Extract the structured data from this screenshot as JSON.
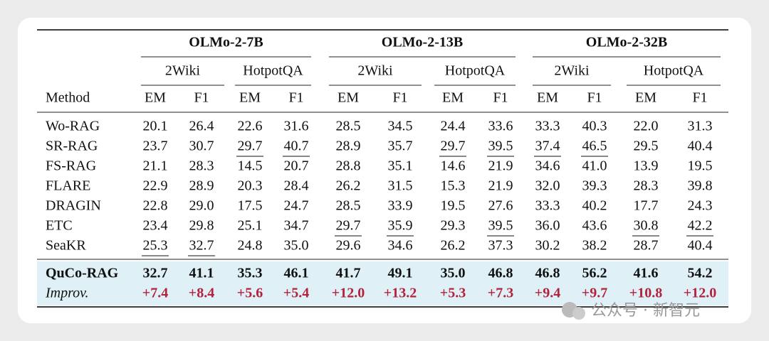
{
  "table": {
    "groups": [
      {
        "label": "OLMo-2-7B",
        "datasets": [
          "2Wiki",
          "HotpotQA"
        ]
      },
      {
        "label": "OLMo-2-13B",
        "datasets": [
          "2Wiki",
          "HotpotQA"
        ]
      },
      {
        "label": "OLMo-2-32B",
        "datasets": [
          "2Wiki",
          "HotpotQA"
        ]
      }
    ],
    "method_header": "Method",
    "metrics": [
      "EM",
      "F1"
    ],
    "rows": [
      {
        "method": "Wo-RAG",
        "cells": [
          "20.1",
          "26.4",
          "22.6",
          "31.6",
          "28.5",
          "34.5",
          "24.4",
          "33.6",
          "33.3",
          "40.3",
          "22.0",
          "31.3"
        ]
      },
      {
        "method": "SR-RAG",
        "cells": [
          "23.7",
          "30.7",
          "29.7",
          "40.7",
          "28.9",
          "35.7",
          "29.7",
          "39.5",
          "37.4",
          "46.5",
          "29.5",
          "40.4"
        ],
        "underlined": [
          2,
          3,
          6,
          7,
          8,
          9
        ]
      },
      {
        "method": "FS-RAG",
        "cells": [
          "21.1",
          "28.3",
          "14.5",
          "20.7",
          "28.8",
          "35.1",
          "14.6",
          "21.9",
          "34.6",
          "41.0",
          "13.9",
          "19.5"
        ]
      },
      {
        "method": "FLARE",
        "cells": [
          "22.9",
          "28.9",
          "20.3",
          "28.4",
          "26.2",
          "31.5",
          "15.3",
          "21.9",
          "32.0",
          "39.3",
          "28.3",
          "39.8"
        ]
      },
      {
        "method": "DRAGIN",
        "cells": [
          "22.8",
          "29.0",
          "17.5",
          "24.7",
          "28.5",
          "33.9",
          "19.5",
          "27.6",
          "33.3",
          "40.2",
          "17.7",
          "24.3"
        ]
      },
      {
        "method": "ETC",
        "cells": [
          "23.4",
          "29.8",
          "25.1",
          "34.7",
          "29.7",
          "35.9",
          "29.3",
          "39.5",
          "36.0",
          "43.6",
          "30.8",
          "42.2"
        ],
        "underlined": [
          4,
          5,
          7,
          10,
          11
        ]
      },
      {
        "method": "SeaKR",
        "cells": [
          "25.3",
          "32.7",
          "24.8",
          "35.0",
          "29.6",
          "34.6",
          "26.2",
          "37.3",
          "30.2",
          "38.2",
          "28.7",
          "40.4"
        ],
        "underlined": [
          0,
          1
        ]
      }
    ],
    "highlight_rows": [
      {
        "method": "QuCo-RAG",
        "cells": [
          "32.7",
          "41.1",
          "35.3",
          "46.1",
          "41.7",
          "49.1",
          "35.0",
          "46.8",
          "46.8",
          "56.2",
          "41.6",
          "54.2"
        ],
        "style": "bold"
      },
      {
        "method": "Improv.",
        "cells": [
          "+7.4",
          "+8.4",
          "+5.6",
          "+5.4",
          "+12.0",
          "+13.2",
          "+5.3",
          "+7.3",
          "+9.4",
          "+9.7",
          "+10.8",
          "+12.0"
        ],
        "style": "improvement",
        "color": "#b3223c"
      }
    ],
    "highlight_color": "#dff0f7"
  },
  "watermark": "公众号 · 新智元"
}
